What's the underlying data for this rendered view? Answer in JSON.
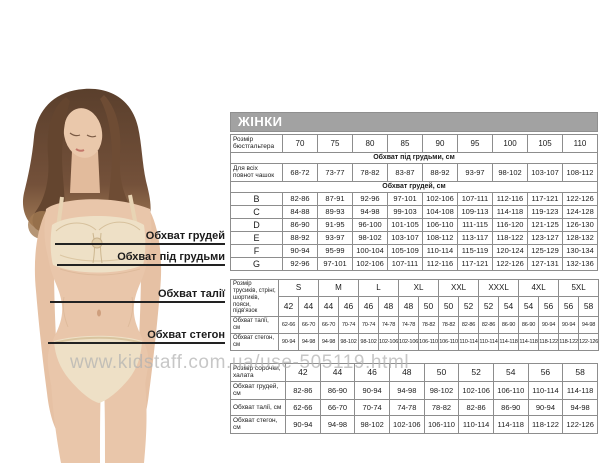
{
  "page": {
    "title_bar": "ЖІНКИ",
    "watermark": "www.kidstaff.com.ua/use-505119.html"
  },
  "colors": {
    "title_bar_bg": "#a2a2a2",
    "table_border": "#8d8d8d",
    "watermark_gray": "#b2b2b2",
    "skin": "#e9c6aa",
    "lingerie": "#eee0c6",
    "hair": "#6b4a33"
  },
  "figure_labels": [
    {
      "id": "chest",
      "label": "Обхват грудей"
    },
    {
      "id": "underbust",
      "label": "Обхват під грудьми"
    },
    {
      "id": "waist",
      "label": "Обхват талії"
    },
    {
      "id": "hips",
      "label": "Обхват стегон"
    }
  ],
  "bra_table": {
    "size_row_label": "Розмір бюстгальтера",
    "sizes": [
      "70",
      "75",
      "80",
      "85",
      "90",
      "95",
      "100",
      "105",
      "110"
    ],
    "underbust_span": "Обхват під грудьми, см",
    "underbust_row_label": "Для всіх повнот чашок",
    "underbust_ranges": [
      "68-72",
      "73-77",
      "78-82",
      "83-87",
      "88-92",
      "93-97",
      "98-102",
      "103-107",
      "108-112"
    ],
    "bust_span": "Обхват грудей, см",
    "cup_rows": [
      {
        "cup": "B",
        "ranges": [
          "82-86",
          "87-91",
          "92-96",
          "97-101",
          "102-106",
          "107-111",
          "112-116",
          "117-121",
          "122-126"
        ]
      },
      {
        "cup": "C",
        "ranges": [
          "84-88",
          "89-93",
          "94-98",
          "99-103",
          "104-108",
          "109-113",
          "114-118",
          "119-123",
          "124-128"
        ]
      },
      {
        "cup": "D",
        "ranges": [
          "86-90",
          "91-95",
          "96-100",
          "101-105",
          "106-110",
          "111-115",
          "116-120",
          "121-125",
          "126-130"
        ]
      },
      {
        "cup": "E",
        "ranges": [
          "88-92",
          "93-97",
          "98-102",
          "103-107",
          "108-112",
          "113-117",
          "118-122",
          "123-127",
          "128-132"
        ]
      },
      {
        "cup": "F",
        "ranges": [
          "90-94",
          "95-99",
          "100-104",
          "105-109",
          "110-114",
          "115-119",
          "120-124",
          "125-129",
          "130-134"
        ]
      },
      {
        "cup": "G",
        "ranges": [
          "92-96",
          "97-101",
          "102-106",
          "107-111",
          "112-116",
          "117-121",
          "122-126",
          "127-131",
          "132-136"
        ]
      }
    ]
  },
  "panties_table": {
    "label": "Розмір трусиків, стрінг, шортиків, пояси, підв'язок",
    "letter_sizes": [
      "S",
      "M",
      "L",
      "XL",
      "XXL",
      "XXXL",
      "4XL",
      "5XL"
    ],
    "numeric_sizes": [
      "42",
      "44",
      "44",
      "46",
      "46",
      "48",
      "48",
      "50",
      "50",
      "52",
      "52",
      "54",
      "54",
      "56",
      "56",
      "58"
    ],
    "waist_row": {
      "label": "Обхват талії, см",
      "values": [
        "62-66",
        "66-70",
        "66-70",
        "70-74",
        "70-74",
        "74-78",
        "74-78",
        "78-82",
        "78-82",
        "82-86",
        "82-86",
        "86-90",
        "86-90",
        "90-94",
        "90-94",
        "94-98"
      ]
    },
    "hips_row": {
      "label": "Обхват стегон, см",
      "values": [
        "90-94",
        "94-98",
        "94-98",
        "98-102",
        "98-102",
        "102-106",
        "102-106",
        "106-110",
        "106-110",
        "110-114",
        "110-114",
        "114-118",
        "114-118",
        "118-122",
        "118-122",
        "122-126"
      ]
    }
  },
  "gown_table": {
    "label": "Розмір сорочки, халата",
    "sizes": [
      "42",
      "44",
      "46",
      "48",
      "50",
      "52",
      "54",
      "56",
      "58"
    ],
    "rows": [
      {
        "label": "Обхват грудей, см",
        "values": [
          "82-86",
          "86-90",
          "90-94",
          "94-98",
          "98-102",
          "102-106",
          "106-110",
          "110-114",
          "114-118"
        ]
      },
      {
        "label": "Обхват талії, см",
        "values": [
          "62-66",
          "66-70",
          "70-74",
          "74-78",
          "78-82",
          "82-86",
          "86-90",
          "90-94",
          "94-98"
        ]
      },
      {
        "label": "Обхват стегон, см",
        "values": [
          "90-94",
          "94-98",
          "98-102",
          "102-106",
          "106-110",
          "110-114",
          "114-118",
          "118-122",
          "122-126"
        ]
      }
    ]
  }
}
